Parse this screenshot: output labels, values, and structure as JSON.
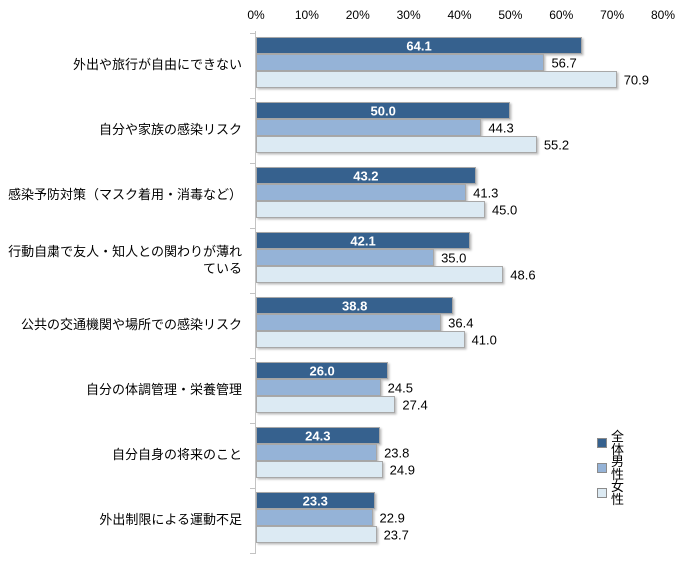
{
  "chart_data": {
    "type": "bar",
    "orientation": "horizontal",
    "title": "",
    "xlabel": "",
    "ylabel": "",
    "xlim": [
      0,
      80
    ],
    "x_tick_labels": [
      "0%",
      "10%",
      "20%",
      "30%",
      "40%",
      "50%",
      "60%",
      "70%",
      "80%"
    ],
    "grid": false,
    "legend_position": "right",
    "value_label_decimals": 1,
    "categories": [
      "外出や旅行が自由にできない",
      "自分や家族の感染リスク",
      "感染予防対策（マスク着用・消毒など）",
      "行動自粛で友人・知人との関わりが薄れている",
      "公共の交通機関や場所での感染リスク",
      "自分の体調管理・栄養管理",
      "自分自身の将来のこと",
      "外出制限による運動不足"
    ],
    "series": [
      {
        "name": "全体",
        "color": "#36618E",
        "values": [
          64.1,
          50.0,
          43.2,
          42.1,
          38.8,
          26.0,
          24.3,
          23.3
        ]
      },
      {
        "name": "男性",
        "color": "#95B3D7",
        "values": [
          56.7,
          44.3,
          41.3,
          35.0,
          36.4,
          24.5,
          23.8,
          22.9
        ]
      },
      {
        "name": "女性",
        "color": "#DCEAF3",
        "values": [
          70.9,
          55.2,
          45.0,
          48.6,
          41.0,
          27.4,
          24.9,
          23.7
        ]
      }
    ]
  },
  "colors": {
    "axis_line": "#c3c3c3",
    "inside_value_label": "#ffffff",
    "outside_value_label": "#000000",
    "background": "#ffffff"
  }
}
